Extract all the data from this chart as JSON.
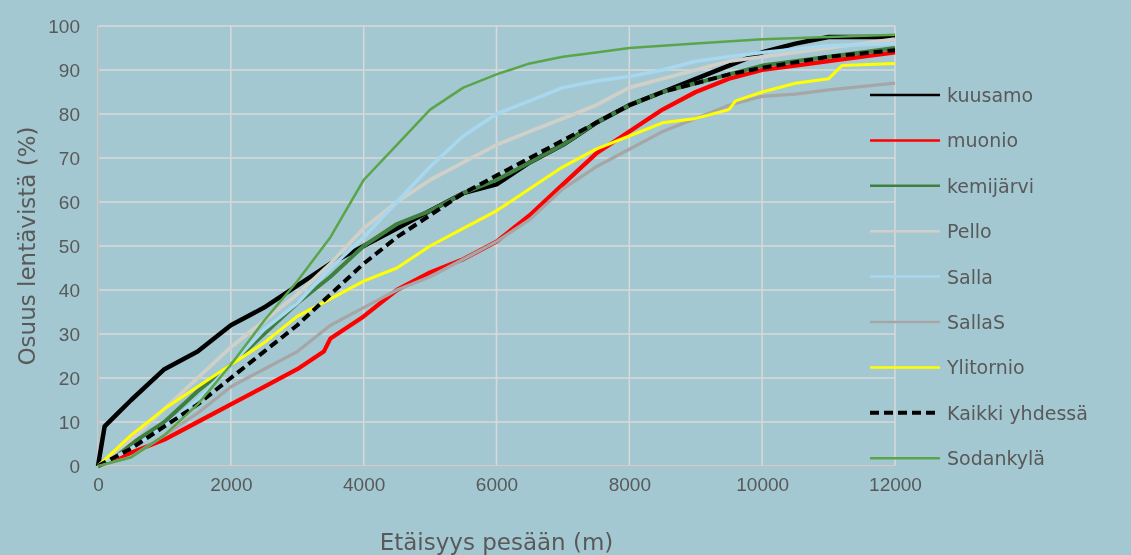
{
  "chart_data": {
    "type": "line",
    "xlabel": "Etäisyys pesään (m)",
    "ylabel": "Osuus lentävistä (%)",
    "xlim": [
      0,
      12000
    ],
    "xticks": [
      0,
      2000,
      4000,
      6000,
      8000,
      10000,
      12000
    ],
    "ylim": [
      0,
      100
    ],
    "yticks": [
      0,
      10,
      20,
      30,
      40,
      50,
      60,
      70,
      80,
      90,
      100
    ],
    "grid": true,
    "legend": "right",
    "marker": "none",
    "line_style": "solid",
    "series": [
      {
        "name": "kuusamo",
        "color": "#000000",
        "x": [
          0,
          100,
          300,
          500,
          1000,
          1500,
          2000,
          2500,
          3000,
          3500,
          4000,
          4500,
          5000,
          5500,
          6000,
          6500,
          7000,
          7500,
          8000,
          8500,
          9000,
          9500,
          10000,
          10500,
          11000,
          12000
        ],
        "values": [
          0,
          9,
          12,
          15,
          22,
          26,
          32,
          36,
          41,
          46,
          50,
          54,
          58,
          62,
          64,
          69,
          73,
          78,
          82,
          85,
          88,
          91,
          94,
          96,
          97.5,
          97.5
        ]
      },
      {
        "name": "muonio",
        "color": "#ff0000",
        "x": [
          0,
          500,
          1000,
          1500,
          2000,
          2500,
          3000,
          3400,
          3500,
          4000,
          4500,
          5000,
          5500,
          6000,
          6500,
          7000,
          7500,
          8000,
          8500,
          9000,
          9500,
          10000,
          10500,
          11000,
          12000
        ],
        "values": [
          0,
          3,
          6,
          10,
          14,
          18,
          22,
          26,
          29,
          34,
          40,
          44,
          47,
          51,
          57,
          64,
          71,
          76,
          81,
          85,
          88,
          90,
          91,
          92,
          94
        ]
      },
      {
        "name": "kemijärvi",
        "color": "#3f7f3f",
        "x": [
          0,
          500,
          1000,
          1500,
          2000,
          2500,
          3000,
          3500,
          4000,
          4500,
          5000,
          5500,
          6000,
          6500,
          7000,
          7500,
          8000,
          8500,
          9000,
          9500,
          10000,
          11000,
          12000
        ],
        "values": [
          0,
          5,
          10,
          17,
          23,
          30,
          37,
          43,
          50,
          55,
          58,
          62,
          65,
          69,
          73,
          78,
          82,
          85,
          87,
          89,
          91,
          93,
          95
        ]
      },
      {
        "name": "Pello",
        "color": "#d0d0c8",
        "x": [
          0,
          500,
          1000,
          1500,
          2000,
          2500,
          3000,
          3500,
          4000,
          4500,
          5000,
          5500,
          6000,
          6500,
          7000,
          7500,
          8000,
          8500,
          9000,
          9500,
          10000,
          11000,
          12000
        ],
        "values": [
          0,
          6,
          13,
          20,
          27,
          33,
          39,
          46,
          54,
          60,
          65,
          69,
          73,
          76,
          79,
          82,
          86,
          88,
          90,
          92,
          93,
          95,
          97
        ]
      },
      {
        "name": "Salla",
        "color": "#a8d8f0",
        "x": [
          0,
          500,
          1000,
          1500,
          2000,
          2500,
          3000,
          3500,
          4000,
          4500,
          5000,
          5500,
          6000,
          6500,
          7000,
          7500,
          8000,
          8500,
          9000,
          9500,
          10000,
          11000,
          12000
        ],
        "values": [
          0,
          4,
          9,
          15,
          23,
          31,
          37,
          45,
          52,
          60,
          68,
          75,
          80,
          83,
          86,
          87.5,
          88.5,
          90,
          92,
          93,
          94,
          95.5,
          96
        ]
      },
      {
        "name": "SallaS",
        "color": "#a6a6a6",
        "x": [
          0,
          500,
          1000,
          1500,
          2000,
          2500,
          3000,
          3500,
          4000,
          4500,
          5000,
          5500,
          6000,
          6500,
          7000,
          7500,
          8000,
          8500,
          9000,
          9500,
          10000,
          10500,
          11000,
          12000
        ],
        "values": [
          0,
          2,
          7,
          12,
          18,
          22,
          26,
          32,
          36,
          40,
          43,
          47,
          51,
          56,
          63,
          68,
          72,
          76,
          79,
          82,
          84,
          84.5,
          85.5,
          87
        ]
      },
      {
        "name": "Ylitornio",
        "color": "#ffff00",
        "x": [
          0,
          500,
          1000,
          1500,
          2000,
          2500,
          3000,
          3500,
          4000,
          4500,
          5000,
          5500,
          6000,
          6500,
          7000,
          7500,
          8000,
          8500,
          9000,
          9500,
          9600,
          10000,
          10500,
          11000,
          11200,
          12000
        ],
        "values": [
          0,
          7,
          13,
          18,
          23,
          28,
          34,
          38,
          42,
          45,
          50,
          54,
          58,
          63,
          68,
          72,
          75,
          78,
          79,
          81,
          83,
          85,
          87,
          88,
          91,
          91.5
        ]
      },
      {
        "name": "Kaikki yhdessä",
        "color": "#000000",
        "line_style": "dashed",
        "x": [
          0,
          500,
          1000,
          1500,
          2000,
          2500,
          3000,
          3500,
          4000,
          4500,
          5000,
          5500,
          6000,
          6500,
          7000,
          7500,
          8000,
          8500,
          9000,
          9500,
          10000,
          11000,
          12000
        ],
        "values": [
          0,
          4,
          9,
          14,
          20,
          26,
          32,
          39,
          46,
          52,
          57,
          62,
          66,
          70,
          74,
          78,
          82,
          85,
          87,
          89,
          90.5,
          93,
          94.5
        ]
      },
      {
        "name": "Sodankylä",
        "color": "#5aa54a",
        "x": [
          0,
          500,
          1000,
          1500,
          2000,
          2500,
          3000,
          3500,
          4000,
          4500,
          5000,
          5500,
          6000,
          6500,
          7000,
          7500,
          8000,
          9000,
          10000,
          11000,
          12000
        ],
        "values": [
          0,
          2,
          7,
          14,
          23,
          33,
          42,
          52,
          65,
          73,
          81,
          86,
          89,
          91.5,
          93,
          94,
          95,
          96,
          97,
          97.5,
          98
        ]
      }
    ]
  }
}
